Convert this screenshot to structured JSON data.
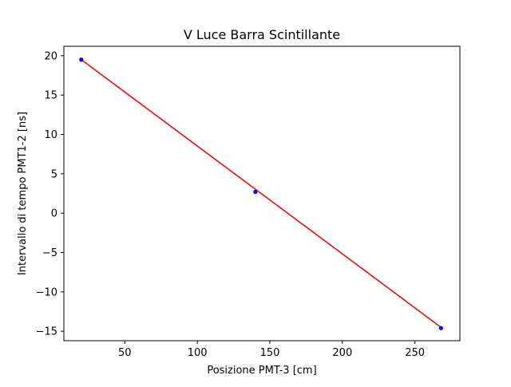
{
  "chart_data": {
    "type": "scatter",
    "title": "V Luce Barra Scintillante",
    "xlabel": "Posizione PMT-3 [cm]",
    "ylabel": "Intervallo di tempo PMT1-2 [ns]",
    "xlim": [
      8,
      281
    ],
    "ylim": [
      -16.2,
      21.2
    ],
    "xticks": [
      50,
      100,
      150,
      200,
      250
    ],
    "yticks": [
      -15,
      -10,
      -5,
      0,
      5,
      10,
      15,
      20
    ],
    "xtick_labels": [
      "50",
      "100",
      "150",
      "200",
      "250"
    ],
    "ytick_labels": [
      "−15",
      "−10",
      "−5",
      "0",
      "5",
      "10",
      "15",
      "20"
    ],
    "grid": false,
    "series": [
      {
        "kind": "points",
        "color": "#0000ff",
        "x": [
          20,
          140,
          268
        ],
        "y": [
          19.5,
          2.7,
          -14.6
        ]
      },
      {
        "kind": "fit-line",
        "color": "#e01010",
        "x": [
          20,
          268
        ],
        "y": [
          19.5,
          -14.5
        ]
      }
    ]
  }
}
